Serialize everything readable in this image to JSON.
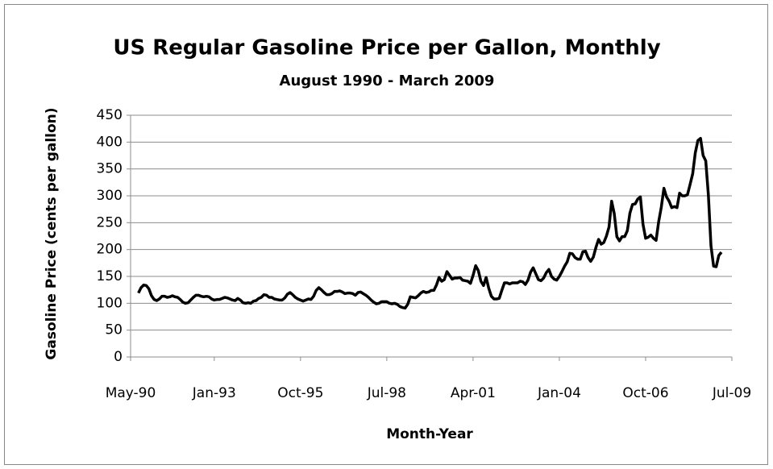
{
  "chart_data": {
    "type": "line",
    "title": "US Regular Gasoline Price per Gallon, Monthly",
    "subtitle": "August 1990 - March 2009",
    "x_label": "Month-Year",
    "y_label": "Gasoline Price (cents per gallon)",
    "x": [
      "1990-08",
      "1990-09",
      "1990-10",
      "1990-11",
      "1990-12",
      "1991-01",
      "1991-02",
      "1991-03",
      "1991-04",
      "1991-05",
      "1991-06",
      "1991-07",
      "1991-08",
      "1991-09",
      "1991-10",
      "1991-11",
      "1991-12",
      "1992-01",
      "1992-02",
      "1992-03",
      "1992-04",
      "1992-05",
      "1992-06",
      "1992-07",
      "1992-08",
      "1992-09",
      "1992-10",
      "1992-11",
      "1992-12",
      "1993-01",
      "1993-02",
      "1993-03",
      "1993-04",
      "1993-05",
      "1993-06",
      "1993-07",
      "1993-08",
      "1993-09",
      "1993-10",
      "1993-11",
      "1993-12",
      "1994-01",
      "1994-02",
      "1994-03",
      "1994-04",
      "1994-05",
      "1994-06",
      "1994-07",
      "1994-08",
      "1994-09",
      "1994-10",
      "1994-11",
      "1994-12",
      "1995-01",
      "1995-02",
      "1995-03",
      "1995-04",
      "1995-05",
      "1995-06",
      "1995-07",
      "1995-08",
      "1995-09",
      "1995-10",
      "1995-11",
      "1995-12",
      "1996-01",
      "1996-02",
      "1996-03",
      "1996-04",
      "1996-05",
      "1996-06",
      "1996-07",
      "1996-08",
      "1996-09",
      "1996-10",
      "1996-11",
      "1996-12",
      "1997-01",
      "1997-02",
      "1997-03",
      "1997-04",
      "1997-05",
      "1997-06",
      "1997-07",
      "1997-08",
      "1997-09",
      "1997-10",
      "1997-11",
      "1997-12",
      "1998-01",
      "1998-02",
      "1998-03",
      "1998-04",
      "1998-05",
      "1998-06",
      "1998-07",
      "1998-08",
      "1998-09",
      "1998-10",
      "1998-11",
      "1998-12",
      "1999-01",
      "1999-02",
      "1999-03",
      "1999-04",
      "1999-05",
      "1999-06",
      "1999-07",
      "1999-08",
      "1999-09",
      "1999-10",
      "1999-11",
      "1999-12",
      "2000-01",
      "2000-02",
      "2000-03",
      "2000-04",
      "2000-05",
      "2000-06",
      "2000-07",
      "2000-08",
      "2000-09",
      "2000-10",
      "2000-11",
      "2000-12",
      "2001-01",
      "2001-02",
      "2001-03",
      "2001-04",
      "2001-05",
      "2001-06",
      "2001-07",
      "2001-08",
      "2001-09",
      "2001-10",
      "2001-11",
      "2001-12",
      "2002-01",
      "2002-02",
      "2002-03",
      "2002-04",
      "2002-05",
      "2002-06",
      "2002-07",
      "2002-08",
      "2002-09",
      "2002-10",
      "2002-11",
      "2002-12",
      "2003-01",
      "2003-02",
      "2003-03",
      "2003-04",
      "2003-05",
      "2003-06",
      "2003-07",
      "2003-08",
      "2003-09",
      "2003-10",
      "2003-11",
      "2003-12",
      "2004-01",
      "2004-02",
      "2004-03",
      "2004-04",
      "2004-05",
      "2004-06",
      "2004-07",
      "2004-08",
      "2004-09",
      "2004-10",
      "2004-11",
      "2004-12",
      "2005-01",
      "2005-02",
      "2005-03",
      "2005-04",
      "2005-05",
      "2005-06",
      "2005-07",
      "2005-08",
      "2005-09",
      "2005-10",
      "2005-11",
      "2005-12",
      "2006-01",
      "2006-02",
      "2006-03",
      "2006-04",
      "2006-05",
      "2006-06",
      "2006-07",
      "2006-08",
      "2006-09",
      "2006-10",
      "2006-11",
      "2006-12",
      "2007-01",
      "2007-02",
      "2007-03",
      "2007-04",
      "2007-05",
      "2007-06",
      "2007-07",
      "2007-08",
      "2007-09",
      "2007-10",
      "2007-11",
      "2007-12",
      "2008-01",
      "2008-02",
      "2008-03",
      "2008-04",
      "2008-05",
      "2008-06",
      "2008-07",
      "2008-08",
      "2008-09",
      "2008-10",
      "2008-11",
      "2008-12",
      "2009-01",
      "2009-02",
      "2009-03"
    ],
    "values": [
      119,
      129,
      134,
      133,
      127,
      114,
      107,
      105,
      108,
      113,
      113,
      111,
      112,
      114,
      112,
      111,
      107,
      102,
      100,
      101,
      106,
      111,
      115,
      115,
      113,
      112,
      113,
      112,
      108,
      106,
      107,
      107,
      109,
      111,
      110,
      108,
      106,
      105,
      109,
      106,
      101,
      100,
      101,
      100,
      104,
      105,
      109,
      111,
      116,
      115,
      111,
      111,
      108,
      107,
      106,
      106,
      110,
      117,
      120,
      116,
      111,
      108,
      106,
      104,
      106,
      108,
      107,
      113,
      124,
      129,
      125,
      120,
      116,
      116,
      118,
      122,
      122,
      123,
      121,
      118,
      119,
      119,
      118,
      115,
      120,
      121,
      118,
      115,
      111,
      106,
      102,
      99,
      100,
      103,
      103,
      103,
      100,
      99,
      100,
      98,
      94,
      92,
      91,
      98,
      112,
      111,
      110,
      114,
      119,
      122,
      120,
      121,
      124,
      124,
      134,
      148,
      141,
      144,
      159,
      152,
      145,
      147,
      147,
      148,
      143,
      142,
      141,
      137,
      152,
      170,
      161,
      141,
      133,
      148,
      128,
      113,
      108,
      108,
      109,
      124,
      138,
      138,
      136,
      138,
      138,
      138,
      141,
      140,
      135,
      143,
      158,
      166,
      155,
      144,
      142,
      147,
      157,
      163,
      150,
      145,
      143,
      150,
      159,
      169,
      177,
      193,
      192,
      185,
      182,
      182,
      196,
      197,
      185,
      178,
      186,
      204,
      219,
      210,
      213,
      225,
      242,
      290,
      267,
      224,
      216,
      224,
      224,
      235,
      268,
      284,
      285,
      294,
      298,
      247,
      221,
      223,
      227,
      221,
      217,
      252,
      279,
      314,
      298,
      290,
      278,
      280,
      278,
      305,
      300,
      300,
      302,
      321,
      341,
      380,
      403,
      407,
      375,
      365,
      302,
      207,
      169,
      168,
      189,
      195
    ],
    "color": "#000000",
    "xlim": [
      "1990-05",
      "2009-07"
    ],
    "xticks": [
      {
        "value": "1990-05",
        "label": "May-90"
      },
      {
        "value": "1993-01",
        "label": "Jan-93"
      },
      {
        "value": "1995-10",
        "label": "Oct-95"
      },
      {
        "value": "1998-07",
        "label": "Jul-98"
      },
      {
        "value": "2001-04",
        "label": "Apr-01"
      },
      {
        "value": "2004-01",
        "label": "Jan-04"
      },
      {
        "value": "2006-10",
        "label": "Oct-06"
      },
      {
        "value": "2009-07",
        "label": "Jul-09"
      }
    ],
    "ylim": [
      0,
      450
    ],
    "yticks": [
      0,
      50,
      100,
      150,
      200,
      250,
      300,
      350,
      400,
      450
    ],
    "grid": true
  }
}
